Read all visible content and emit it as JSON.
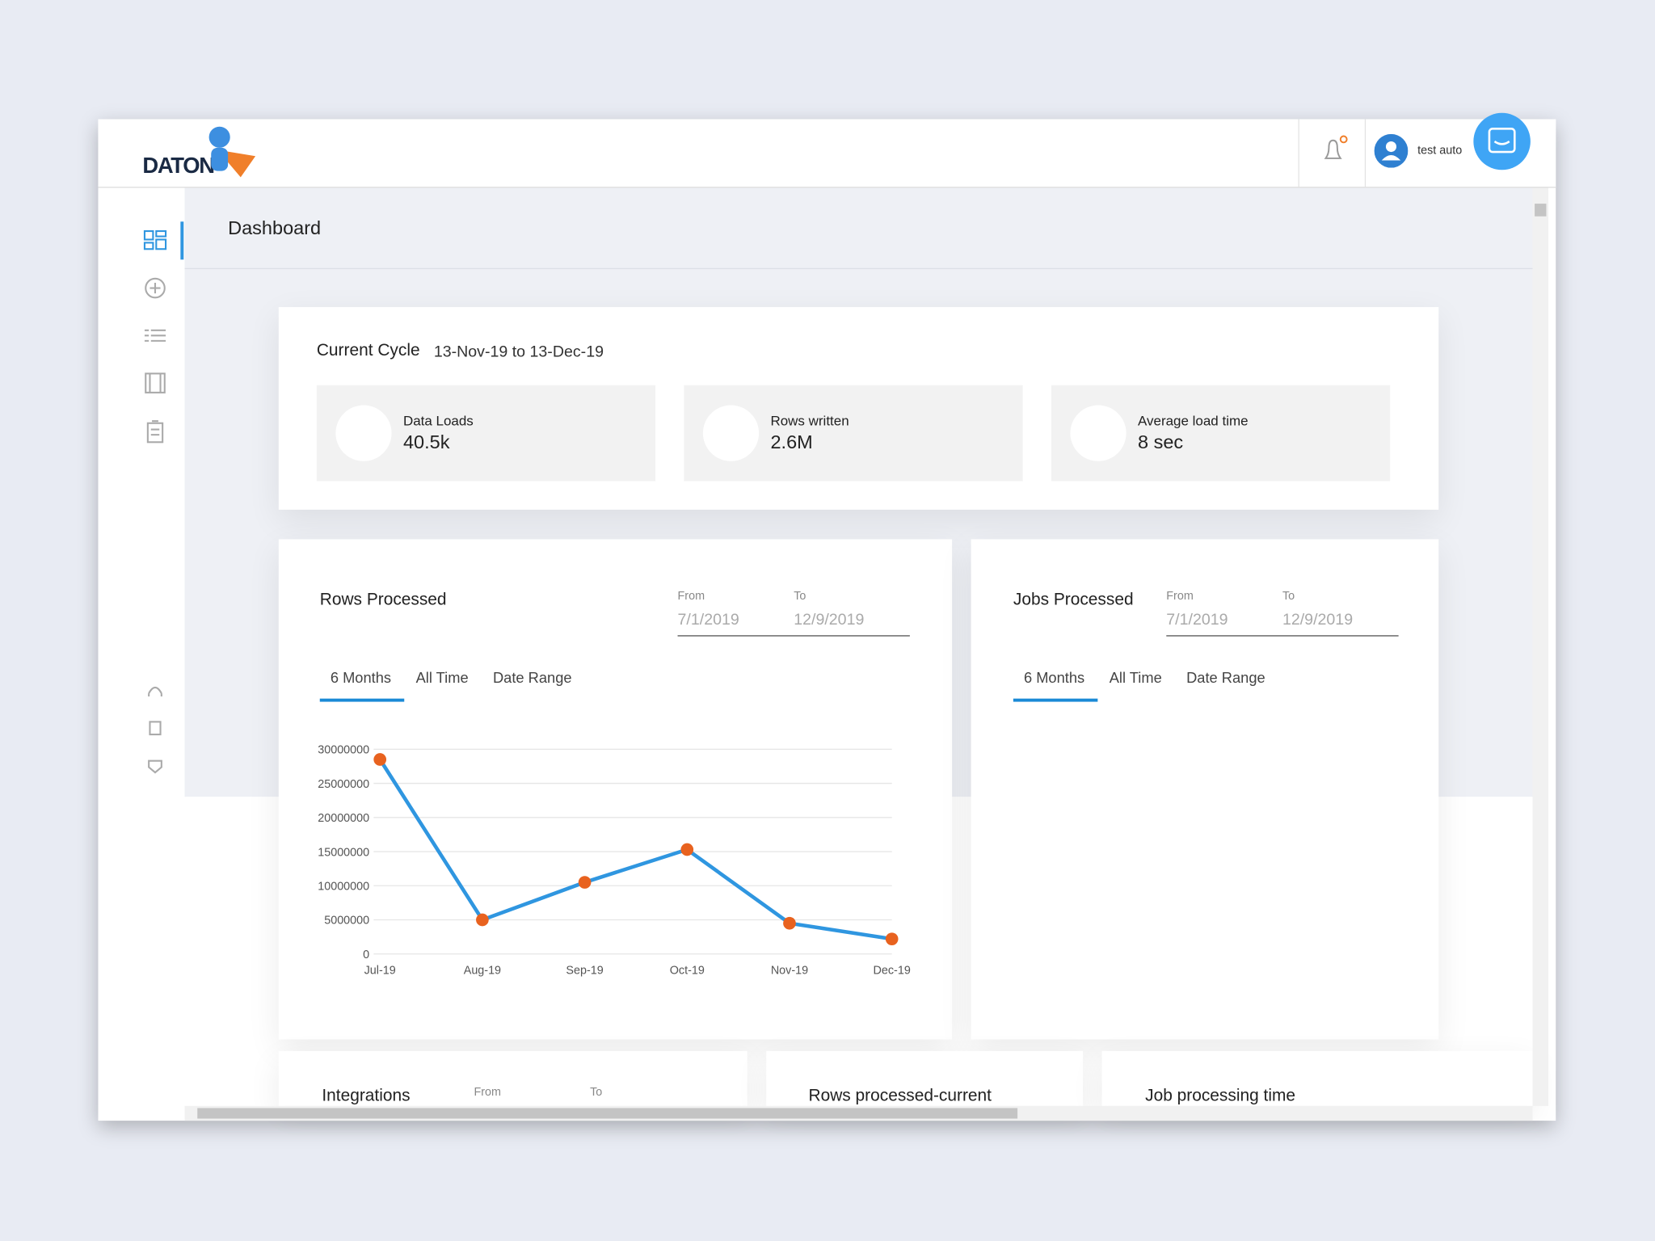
{
  "header": {
    "logo": "DATON",
    "user": "test auto"
  },
  "page_title": "Dashboard",
  "current_cycle": {
    "label": "Current Cycle",
    "range": "13-Nov-19 to 13-Dec-19",
    "stats": [
      {
        "label": "Data Loads",
        "value": "40.5k"
      },
      {
        "label": "Rows written",
        "value": "2.6M"
      },
      {
        "label": "Average load time",
        "value": "8 sec"
      }
    ]
  },
  "rows_processed": {
    "title": "Rows Processed",
    "from_label": "From",
    "to_label": "To",
    "from": "7/1/2019",
    "to": "12/9/2019",
    "tabs": [
      "6 Months",
      "All Time",
      "Date Range"
    ]
  },
  "chart_data": {
    "type": "line",
    "categories": [
      "Jul-19",
      "Aug-19",
      "Sep-19",
      "Oct-19",
      "Nov-19",
      "Dec-19"
    ],
    "values": [
      28500000,
      5000000,
      10500000,
      15300000,
      4500000,
      2200000
    ],
    "color": "#2f96e0",
    "marker_color": "#e8621f",
    "ylim": [
      0,
      30000000
    ],
    "yticks": [
      0,
      5000000,
      10000000,
      15000000,
      20000000,
      25000000,
      30000000
    ],
    "grid": true
  },
  "jobs_processed": {
    "title": "Jobs Processed",
    "from_label": "From",
    "to_label": "To",
    "from": "7/1/2019",
    "to": "12/9/2019",
    "tabs": [
      "6 Months",
      "All Time",
      "Date Range"
    ]
  },
  "bottom_cards": [
    {
      "title": "Integrations",
      "from_label": "From",
      "to_label": "To"
    },
    {
      "title": "Rows processed-current"
    },
    {
      "title": "Job processing time"
    }
  ]
}
